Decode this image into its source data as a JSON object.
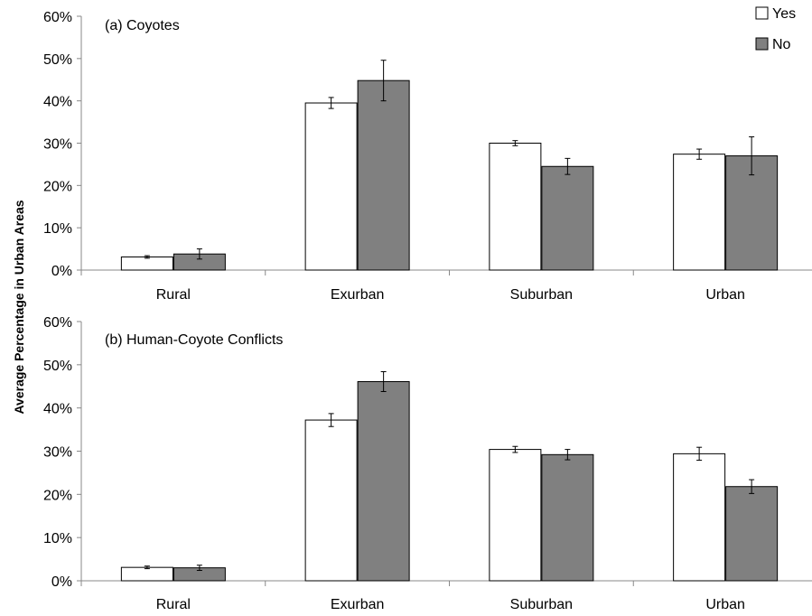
{
  "chart_data": {
    "type": "bar",
    "ylabel": "Average Percentage in Urban Areas",
    "legend": {
      "placement": "top-right",
      "entries": [
        {
          "name": "Yes",
          "color": "#ffffff"
        },
        {
          "name": "No",
          "color": "#808080"
        }
      ]
    },
    "grid": false,
    "panels": [
      {
        "title": "(a) Coyotes",
        "categories": [
          "Rural",
          "Exurban",
          "Suburban",
          "Urban"
        ],
        "ylim": [
          0,
          60
        ],
        "yticks": [
          "0%",
          "10%",
          "20%",
          "30%",
          "40%",
          "50%",
          "60%"
        ],
        "series": [
          {
            "name": "Yes",
            "values": [
              3.1,
              39.5,
              30.0,
              27.4
            ],
            "errors": [
              0.3,
              1.3,
              0.6,
              1.2
            ]
          },
          {
            "name": "No",
            "values": [
              3.8,
              44.8,
              24.5,
              27.0
            ],
            "errors": [
              1.2,
              4.8,
              1.9,
              4.5
            ]
          }
        ]
      },
      {
        "title": "(b) Human-Coyote Conflicts",
        "categories": [
          "Rural",
          "Exurban",
          "Suburban",
          "Urban"
        ],
        "ylim": [
          0,
          60
        ],
        "yticks": [
          "0%",
          "10%",
          "20%",
          "30%",
          "40%",
          "50%",
          "60%"
        ],
        "series": [
          {
            "name": "Yes",
            "values": [
              3.1,
              37.2,
              30.4,
              29.4
            ],
            "errors": [
              0.3,
              1.5,
              0.7,
              1.5
            ]
          },
          {
            "name": "No",
            "values": [
              3.0,
              46.1,
              29.2,
              21.8
            ],
            "errors": [
              0.6,
              2.3,
              1.2,
              1.6
            ]
          }
        ]
      }
    ]
  }
}
